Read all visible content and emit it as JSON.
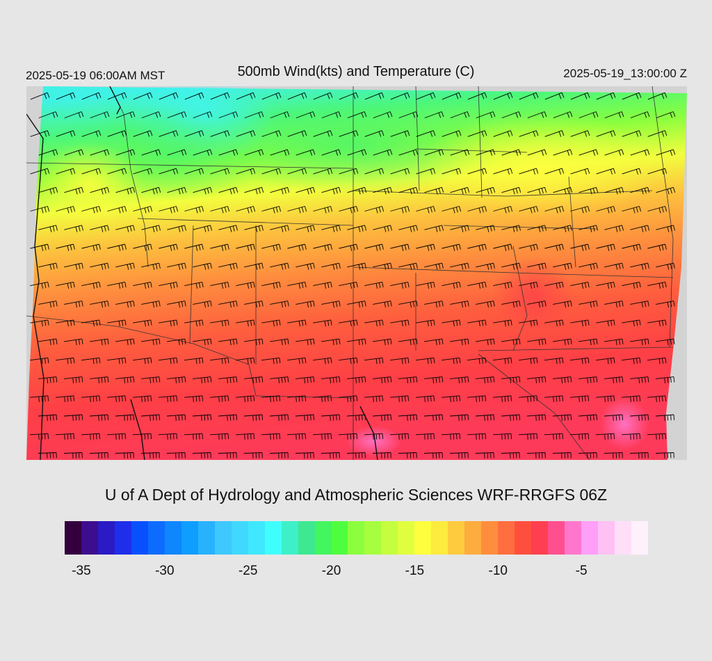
{
  "header": {
    "local_time": "2025-05-19 06:00AM MST",
    "title": "500mb Wind(kts) and Temperature (C)",
    "utc_time": "2025-05-19_13:00:00 Z"
  },
  "credit": "U of A Dept of Hydrology and Atmospheric Sciences WRF-RRGFS 06Z",
  "colorbar": {
    "min": -36,
    "max": -1,
    "colors": [
      "#33003d",
      "#3c0d8e",
      "#2a1bc4",
      "#1f2eea",
      "#0850fe",
      "#0d6cfe",
      "#0e86fe",
      "#0e9efe",
      "#28b2fe",
      "#3ec8fe",
      "#40d8fe",
      "#3fe8fe",
      "#40fefe",
      "#3ef0c8",
      "#3ee891",
      "#43f55e",
      "#4efe3e",
      "#8bfe3e",
      "#a7fe3e",
      "#c4fe3e",
      "#e0fe3e",
      "#fefe3e",
      "#fdeb3e",
      "#fecb3e",
      "#fdac3e",
      "#fe8e3e",
      "#fe6e3e",
      "#fe4f3e",
      "#fe3f4f",
      "#ff4f8f",
      "#ff77cc",
      "#ff9ff8",
      "#ffc0f4",
      "#ffdff8",
      "#fff1fc"
    ],
    "tick_labels": [
      {
        "label": "-35",
        "value": -35
      },
      {
        "label": "-30",
        "value": -30
      },
      {
        "label": "-25",
        "value": -25
      },
      {
        "label": "-20",
        "value": -20
      },
      {
        "label": "-15",
        "value": -15
      },
      {
        "label": "-10",
        "value": -10
      },
      {
        "label": "-5",
        "value": -5
      }
    ]
  }
}
